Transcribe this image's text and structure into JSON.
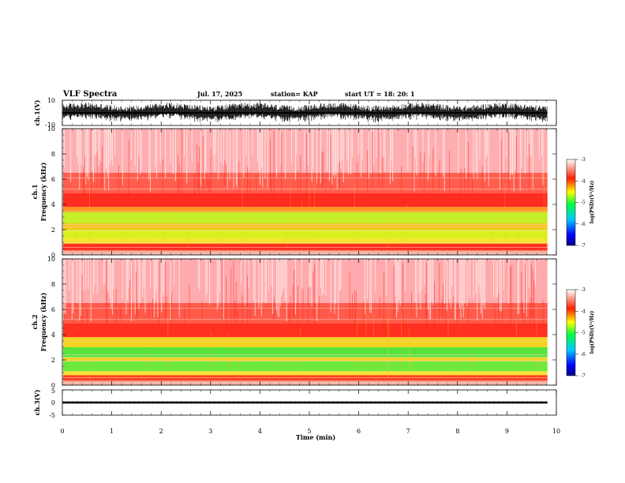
{
  "header": {
    "title": "VLF Spectra",
    "date": "Jul. 17, 2025",
    "station": "station= KAP",
    "start": "start UT =  18: 20: 1"
  },
  "chart_data": [
    {
      "type": "line",
      "name": "ch1-waveform",
      "ylabel": "ch.1(V)",
      "ylim": [
        -10,
        10
      ],
      "ytick_labels": [
        "10",
        "-10"
      ],
      "x_range_min": [
        0,
        9.82
      ],
      "description_values": {
        "typical_swing": [
          -7,
          7
        ],
        "slow_oscillation_period_min": 1.7
      }
    },
    {
      "type": "heatmap",
      "name": "ch1-spectrogram",
      "ylabel": "ch.1\nFrequency (kHz)",
      "ylim_khz": [
        0,
        10
      ],
      "ytick_labels": [
        "0",
        "2",
        "4",
        "6",
        "8",
        "10"
      ],
      "x_range_min": [
        0,
        9.82
      ],
      "bands_khz": [
        {
          "from": 0.0,
          "to": 0.3,
          "color": "#f2b8a8"
        },
        {
          "from": 0.3,
          "to": 0.9,
          "color": "#ff3020"
        },
        {
          "from": 0.9,
          "to": 1.3,
          "color": "#f6e42a"
        },
        {
          "from": 1.3,
          "to": 2.0,
          "color": "#d9f020"
        },
        {
          "from": 2.0,
          "to": 2.5,
          "color": "#f4c61c"
        },
        {
          "from": 2.5,
          "to": 3.4,
          "color": "#c4ee2a"
        },
        {
          "from": 3.4,
          "to": 3.8,
          "color": "#ff9320"
        },
        {
          "from": 3.8,
          "to": 4.9,
          "color": "#ff2c20"
        },
        {
          "from": 4.9,
          "to": 6.5,
          "color": "#ff5e4e"
        },
        {
          "from": 6.5,
          "to": 10.0,
          "color": "#ffaeb0"
        }
      ]
    },
    {
      "type": "heatmap",
      "name": "ch2-spectrogram",
      "ylabel": "ch.2\nFrequency (kHz)",
      "ylim_khz": [
        0,
        10
      ],
      "ytick_labels": [
        "0",
        "2",
        "4",
        "6",
        "8",
        "10"
      ],
      "x_range_min": [
        0,
        9.82
      ],
      "bands_khz": [
        {
          "from": 0.0,
          "to": 0.3,
          "color": "#f2b8a8"
        },
        {
          "from": 0.3,
          "to": 0.8,
          "color": "#ff4020"
        },
        {
          "from": 0.8,
          "to": 1.1,
          "color": "#f6e42a"
        },
        {
          "from": 1.1,
          "to": 1.9,
          "color": "#6ee83c"
        },
        {
          "from": 1.9,
          "to": 2.2,
          "color": "#f0d424"
        },
        {
          "from": 2.2,
          "to": 3.0,
          "color": "#56e43c"
        },
        {
          "from": 3.0,
          "to": 3.8,
          "color": "#f6d424"
        },
        {
          "from": 3.8,
          "to": 4.9,
          "color": "#ff3020"
        },
        {
          "from": 4.9,
          "to": 6.5,
          "color": "#ff5a4a"
        },
        {
          "from": 6.5,
          "to": 10.0,
          "color": "#ffaaac"
        }
      ]
    },
    {
      "type": "line",
      "name": "ch3-waveform",
      "ylabel": "ch.3(V)",
      "ylim": [
        -5,
        5
      ],
      "ytick_labels": [
        "5",
        "0",
        "-5"
      ],
      "x_range_min": [
        0,
        9.82
      ],
      "description_values": {
        "level_v": 0.0,
        "noise_v": 0.4
      }
    }
  ],
  "x_axis": {
    "label": "Time (min)",
    "range": [
      0,
      10
    ],
    "tick_labels": [
      "0",
      "1",
      "2",
      "3",
      "4",
      "5",
      "6",
      "7",
      "8",
      "9",
      "10"
    ]
  },
  "colorbar": {
    "label": "log(PSD)(V²/Hz)",
    "range": [
      -7,
      -3
    ],
    "tick_labels": [
      "-3",
      "-4",
      "-5",
      "-6",
      "-7"
    ]
  }
}
